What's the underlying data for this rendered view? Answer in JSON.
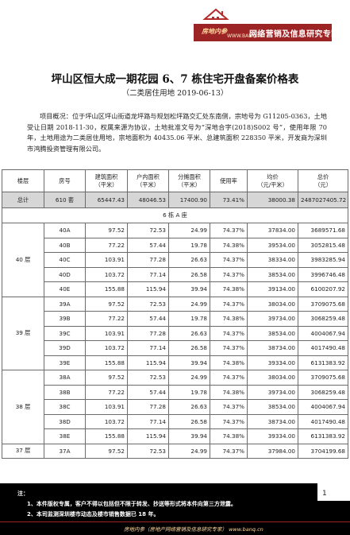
{
  "header": {
    "brand": "房地内参",
    "url": "WWW.BANQ.cn",
    "slogan": "网络营销及信息研究专家",
    "brand_color": "#9d2424"
  },
  "title": "坪山区恒大成一期花园 6、7 栋住宅开盘备案价格表",
  "subtitle": "（二类居住用地   2019-06-13）",
  "overview": "项目概况：位于坪山区坪山街道龙坪路与规划松坪路交汇处东南侧，宗地号为 G11205-0363，土地受让日期 2018-11-30，权属来源为协议，土地批准文号为“深地合字(2018)S002 号”，使用年限 70 年，土地用途为二类居住用地，宗地面积为 40435.06 平米、总建筑面积 228350 平米，开发商为深圳市鸿腾投资管理有限公司。",
  "table": {
    "headers": [
      {
        "l1": "楼层",
        "l2": ""
      },
      {
        "l1": "房号",
        "l2": ""
      },
      {
        "l1": "建筑面积",
        "l2": "（平米）"
      },
      {
        "l1": "户内面积",
        "l2": "（平米）"
      },
      {
        "l1": "分摊面积",
        "l2": "（平米）"
      },
      {
        "l1": "使用率",
        "l2": ""
      },
      {
        "l1": "均价",
        "l2": "（元/平米）"
      },
      {
        "l1": "总价",
        "l2": "（元）"
      }
    ],
    "total": [
      "总计",
      "610 套",
      "65447.43",
      "48046.53",
      "17400.90",
      "73.41%",
      "38000.38",
      "2487027405.72"
    ],
    "section": "6 栋 A 座",
    "floors": [
      {
        "floor": "40 层",
        "rows": [
          [
            "40A",
            "97.52",
            "72.53",
            "24.99",
            "74.37%",
            "37834.00",
            "3689571.68"
          ],
          [
            "40B",
            "77.22",
            "57.44",
            "19.78",
            "74.38%",
            "39534.00",
            "3052815.48"
          ],
          [
            "40C",
            "103.91",
            "77.28",
            "26.63",
            "74.37%",
            "38334.00",
            "3983285.94"
          ],
          [
            "40D",
            "103.72",
            "77.14",
            "26.58",
            "74.37%",
            "38534.00",
            "3996746.48"
          ],
          [
            "40E",
            "155.88",
            "115.94",
            "39.94",
            "74.38%",
            "39134.00",
            "6100207.92"
          ]
        ]
      },
      {
        "floor": "39 层",
        "rows": [
          [
            "39A",
            "97.52",
            "72.53",
            "24.99",
            "74.37%",
            "38034.00",
            "3709075.68"
          ],
          [
            "39B",
            "77.22",
            "57.44",
            "19.78",
            "74.38%",
            "39734.00",
            "3068259.48"
          ],
          [
            "39C",
            "103.91",
            "77.28",
            "26.63",
            "74.37%",
            "38534.00",
            "4004067.94"
          ],
          [
            "39D",
            "103.72",
            "77.14",
            "26.58",
            "74.37%",
            "38734.00",
            "4017490.48"
          ],
          [
            "39E",
            "155.88",
            "115.94",
            "39.94",
            "74.38%",
            "39334.00",
            "6131383.92"
          ]
        ]
      },
      {
        "floor": "38 层",
        "rows": [
          [
            "38A",
            "97.52",
            "72.53",
            "24.99",
            "74.37%",
            "38034.00",
            "3709075.68"
          ],
          [
            "38B",
            "77.22",
            "57.44",
            "19.78",
            "74.38%",
            "39734.00",
            "3068259.48"
          ],
          [
            "38C",
            "103.91",
            "77.28",
            "26.63",
            "74.37%",
            "38534.00",
            "4004067.94"
          ],
          [
            "38D",
            "103.72",
            "77.14",
            "26.58",
            "74.37%",
            "38734.00",
            "4017490.48"
          ],
          [
            "38E",
            "155.88",
            "115.94",
            "39.94",
            "74.38%",
            "39334.00",
            "6131383.92"
          ]
        ]
      },
      {
        "floor": "37 层",
        "rows": [
          [
            "37A",
            "97.52",
            "72.53",
            "24.99",
            "74.37%",
            "37984.00",
            "3704199.68"
          ]
        ]
      }
    ]
  },
  "notes": {
    "label": "注：",
    "page_number": "1",
    "lines": [
      "1、本件版权专属，客户不得以包括但不限于转发、抄送等形式将本件向第三方泄露。",
      "2、本司监测深圳楼市动态及楼市销售数据已 18 年。"
    ],
    "footer": "房地内参（房地产网络营销及信息研究专家） www.banq.cn"
  }
}
